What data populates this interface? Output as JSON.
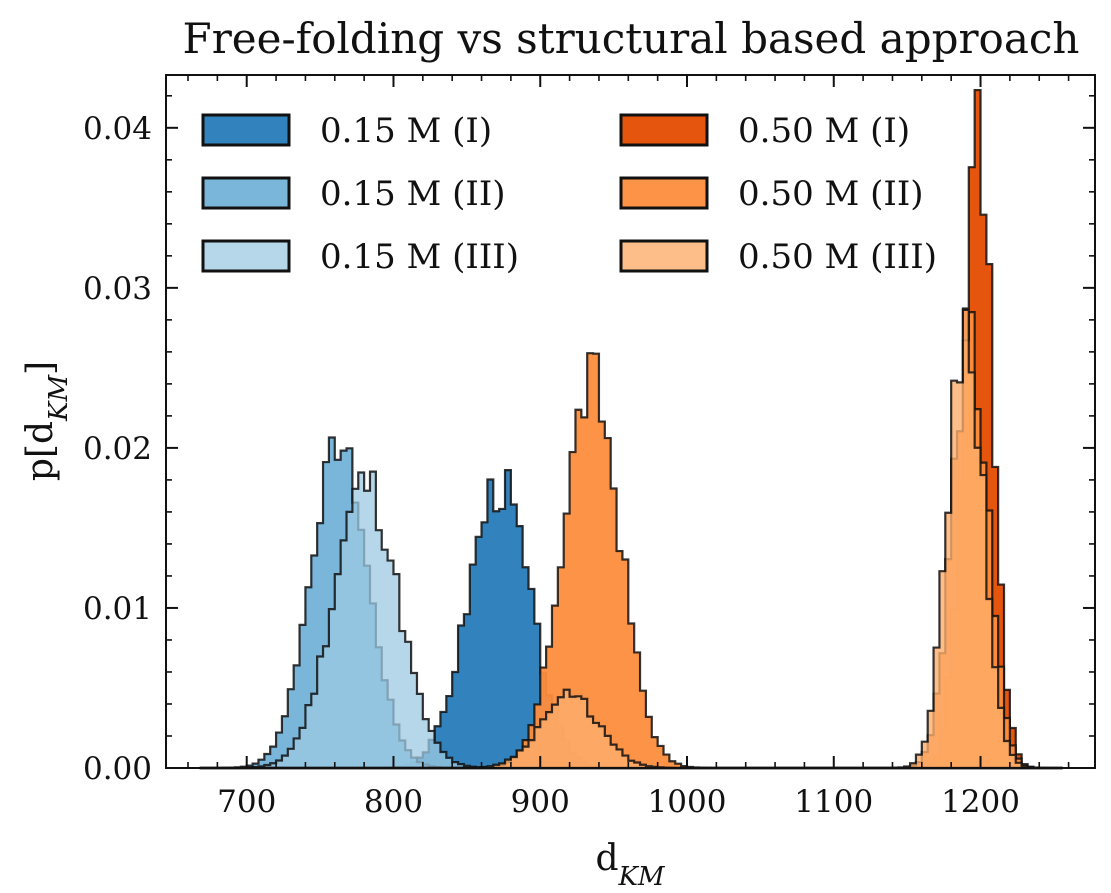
{
  "chart_data": {
    "type": "histogram",
    "title": "Free-folding vs structural based approach",
    "xlabel_main": "d",
    "xlabel_sub": "KM",
    "ylabel_main": "p[d",
    "ylabel_sub": "KM",
    "ylabel_end": "]",
    "xlim": [
      645,
      1278
    ],
    "ylim": [
      0,
      0.0433
    ],
    "x_ticks": [
      700,
      800,
      900,
      1000,
      1100,
      1200
    ],
    "x_tick_labels": [
      "700",
      "800",
      "900",
      "1000",
      "1100",
      "1200"
    ],
    "y_ticks": [
      0,
      0.01,
      0.02,
      0.03,
      0.04
    ],
    "y_tick_labels": [
      "0.00",
      "0.01",
      "0.02",
      "0.03",
      "0.04"
    ],
    "bin_width": 4,
    "legend_position": "top-left, two columns",
    "series": [
      {
        "name": "0.15 M (I)",
        "color": "#3182bd",
        "opacity": 1.0,
        "mean": 872,
        "sd": 21,
        "peak": 0.0178,
        "noise": 0.1,
        "seed": 3
      },
      {
        "name": "0.15 M (II)",
        "color": "#6baed6",
        "opacity": 0.9,
        "mean": 763,
        "sd": 19.5,
        "peak": 0.0202,
        "noise": 0.06,
        "seed": 7
      },
      {
        "name": "0.15 M (III)",
        "color": "#9ecae1",
        "opacity": 0.75,
        "mean": 781,
        "sd": 22,
        "peak": 0.0178,
        "noise": 0.1,
        "seed": 11
      },
      {
        "name": "0.50 M (I)",
        "color": "#e6550d",
        "opacity": 1.0,
        "mean": 1198,
        "sd": 10,
        "peak": 0.0415,
        "noise": 0.16,
        "seed": 13
      },
      {
        "name": "0.50 M (II)",
        "color": "#fd8d3c",
        "opacity": 0.95,
        "mean": 935,
        "sd": 19.5,
        "peak": 0.024,
        "noise": 0.1,
        "seed": 17
      },
      {
        "name": "0.50 M (III)",
        "color": "#fdae6b",
        "opacity": 0.8,
        "mean": 1190,
        "sd": 12,
        "peak": 0.0275,
        "noise": 0.1,
        "seed": 19
      }
    ],
    "series_extra_lobes": [
      {
        "series": "0.50 M (II)",
        "mean": 1193,
        "sd": 12,
        "peak": 0.027,
        "noise": 0.1,
        "seed": 23
      },
      {
        "series": "0.50 M (III)",
        "mean": 920,
        "sd": 20,
        "peak": 0.0045,
        "noise": 0.1,
        "seed": 29
      }
    ]
  }
}
